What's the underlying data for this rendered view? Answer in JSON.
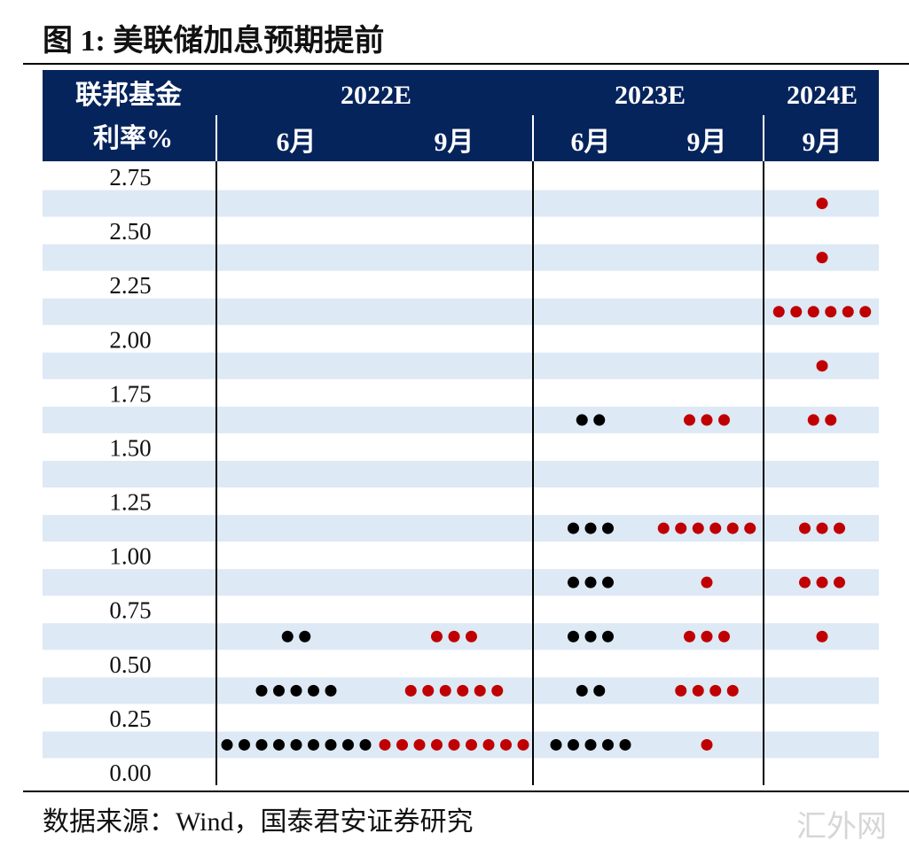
{
  "figure": {
    "title": "图 1:  美联储加息预期提前",
    "source": "数据来源：Wind，国泰君安证券研究",
    "watermark": "汇外网"
  },
  "colors": {
    "header_bg": "#06245c",
    "header_text": "#ffffff",
    "band_shaded": "#dde9f5",
    "dot_june": "#000000",
    "dot_sept": "#c00000"
  },
  "chart_data": {
    "type": "scatter",
    "title": "美联储加息预期提前",
    "ylabel": "联邦基金利率%",
    "ylim": [
      0,
      2.75
    ],
    "y_ticks": [
      "2.75",
      "2.50",
      "2.25",
      "2.00",
      "1.75",
      "1.50",
      "1.25",
      "1.00",
      "0.75",
      "0.50",
      "0.25",
      "0.00"
    ],
    "header_label_line1": "联邦基金",
    "header_label_line2": "利率%",
    "year_groups": [
      {
        "label": "2022E",
        "columns": [
          0,
          1
        ]
      },
      {
        "label": "2023E",
        "columns": [
          2,
          3
        ]
      },
      {
        "label": "2024E",
        "columns": [
          4
        ]
      }
    ],
    "columns": [
      {
        "year": "2022E",
        "label": "6月",
        "color": "dot_june",
        "points": [
          {
            "rate": 0.625,
            "count": 2
          },
          {
            "rate": 0.375,
            "count": 5
          },
          {
            "rate": 0.125,
            "count": 9
          }
        ]
      },
      {
        "year": "2022E",
        "label": "9月",
        "color": "dot_sept",
        "points": [
          {
            "rate": 0.625,
            "count": 3
          },
          {
            "rate": 0.375,
            "count": 6
          },
          {
            "rate": 0.125,
            "count": 9
          }
        ]
      },
      {
        "year": "2023E",
        "label": "6月",
        "color": "dot_june",
        "points": [
          {
            "rate": 1.625,
            "count": 2
          },
          {
            "rate": 1.125,
            "count": 3
          },
          {
            "rate": 0.875,
            "count": 3
          },
          {
            "rate": 0.625,
            "count": 3
          },
          {
            "rate": 0.375,
            "count": 2
          },
          {
            "rate": 0.125,
            "count": 5
          }
        ]
      },
      {
        "year": "2023E",
        "label": "9月",
        "color": "dot_sept",
        "points": [
          {
            "rate": 1.625,
            "count": 3
          },
          {
            "rate": 1.125,
            "count": 6
          },
          {
            "rate": 0.875,
            "count": 1
          },
          {
            "rate": 0.625,
            "count": 3
          },
          {
            "rate": 0.375,
            "count": 4
          },
          {
            "rate": 0.125,
            "count": 1
          }
        ]
      },
      {
        "year": "2024E",
        "label": "9月",
        "color": "dot_sept",
        "points": [
          {
            "rate": 2.625,
            "count": 1
          },
          {
            "rate": 2.375,
            "count": 1
          },
          {
            "rate": 2.125,
            "count": 6
          },
          {
            "rate": 1.875,
            "count": 1
          },
          {
            "rate": 1.625,
            "count": 2
          },
          {
            "rate": 1.125,
            "count": 3
          },
          {
            "rate": 0.875,
            "count": 3
          },
          {
            "rate": 0.625,
            "count": 1
          }
        ]
      }
    ]
  }
}
